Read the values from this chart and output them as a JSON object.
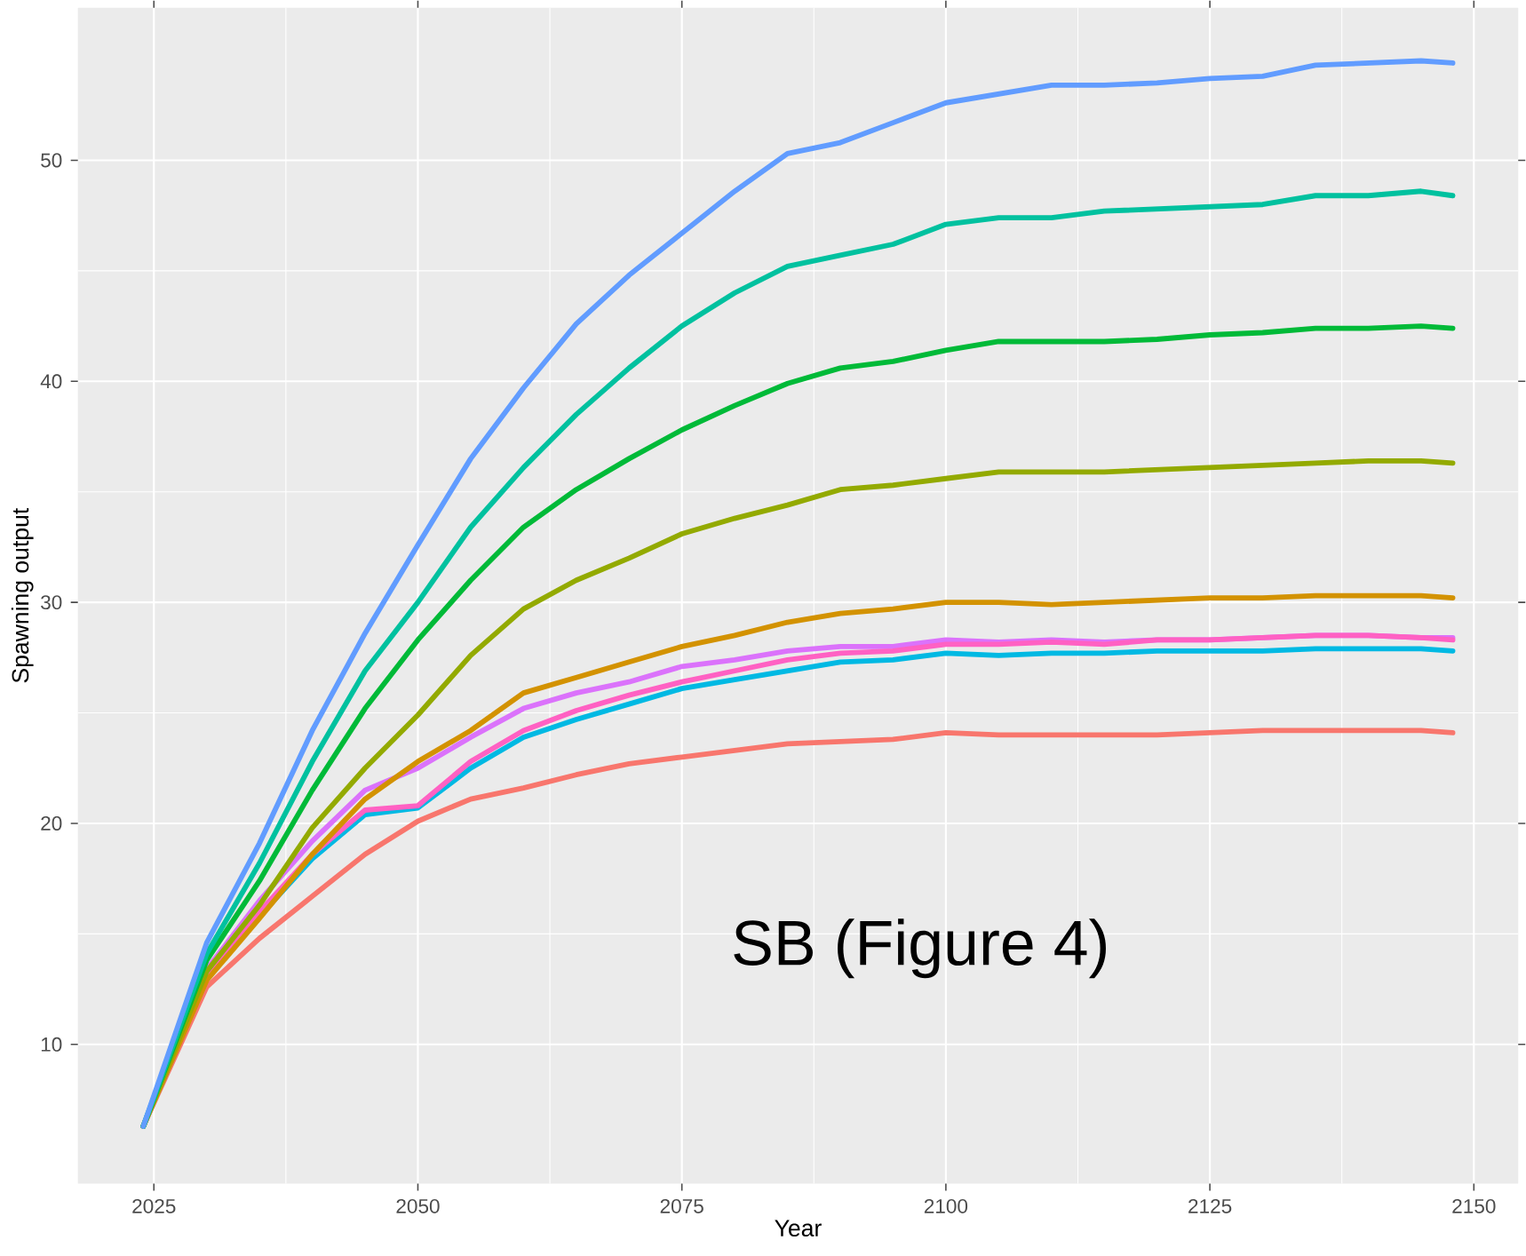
{
  "chart_data": {
    "type": "line",
    "xlabel": "Year",
    "ylabel": "Spawning output",
    "annotations": [
      "SB (Figure 4)"
    ],
    "x": [
      2024,
      2030,
      2035,
      2040,
      2045,
      2050,
      2055,
      2060,
      2065,
      2070,
      2075,
      2080,
      2085,
      2090,
      2095,
      2100,
      2105,
      2110,
      2115,
      2120,
      2125,
      2130,
      2135,
      2140,
      2145,
      2148
    ],
    "xlim": [
      2017.8,
      2154.2
    ],
    "xticks": [
      2025,
      2050,
      2075,
      2100,
      2125,
      2150
    ],
    "ylim": [
      3.7,
      56.9
    ],
    "yticks": [
      10,
      20,
      30,
      40,
      50
    ],
    "grid": true,
    "series": [
      {
        "color": "#F8766D",
        "values": [
          6.3,
          12.6,
          14.8,
          16.7,
          18.6,
          20.1,
          21.1,
          21.6,
          22.2,
          22.7,
          23.0,
          23.3,
          23.6,
          23.7,
          23.8,
          24.1,
          24.0,
          24.0,
          24.0,
          24.0,
          24.1,
          24.2,
          24.2,
          24.2,
          24.2,
          24.1
        ]
      },
      {
        "color": "#00B9E3",
        "values": [
          6.3,
          13.0,
          15.8,
          18.4,
          20.4,
          20.7,
          22.5,
          23.9,
          24.7,
          25.4,
          26.1,
          26.5,
          26.9,
          27.3,
          27.4,
          27.7,
          27.6,
          27.7,
          27.7,
          27.8,
          27.8,
          27.8,
          27.9,
          27.9,
          27.9,
          27.8
        ]
      },
      {
        "color": "#DB72FB",
        "values": [
          6.3,
          13.4,
          16.5,
          19.2,
          21.5,
          22.5,
          23.9,
          25.2,
          25.9,
          26.4,
          27.1,
          27.4,
          27.8,
          28.0,
          28.0,
          28.3,
          28.2,
          28.3,
          28.2,
          28.3,
          28.3,
          28.4,
          28.5,
          28.5,
          28.4,
          28.4
        ]
      },
      {
        "color": "#FF61C3",
        "values": [
          6.3,
          13.1,
          16.0,
          18.6,
          20.6,
          20.8,
          22.8,
          24.2,
          25.1,
          25.8,
          26.4,
          26.9,
          27.4,
          27.7,
          27.8,
          28.1,
          28.1,
          28.2,
          28.1,
          28.3,
          28.3,
          28.4,
          28.5,
          28.5,
          28.4,
          28.3
        ]
      },
      {
        "color": "#D39200",
        "values": [
          6.3,
          12.9,
          15.7,
          18.6,
          21.1,
          22.8,
          24.2,
          25.9,
          26.6,
          27.3,
          28.0,
          28.5,
          29.1,
          29.5,
          29.7,
          30.0,
          30.0,
          29.9,
          30.0,
          30.1,
          30.2,
          30.2,
          30.3,
          30.3,
          30.3,
          30.2
        ]
      },
      {
        "color": "#93AA00",
        "values": [
          6.3,
          13.3,
          16.3,
          19.8,
          22.5,
          24.9,
          27.6,
          29.7,
          31.0,
          32.0,
          33.1,
          33.8,
          34.4,
          35.1,
          35.3,
          35.6,
          35.9,
          35.9,
          35.9,
          36.0,
          36.1,
          36.2,
          36.3,
          36.4,
          36.4,
          36.3
        ]
      },
      {
        "color": "#00BA38",
        "values": [
          6.3,
          13.8,
          17.4,
          21.5,
          25.2,
          28.3,
          31.0,
          33.4,
          35.1,
          36.5,
          37.8,
          38.9,
          39.9,
          40.6,
          40.9,
          41.4,
          41.8,
          41.8,
          41.8,
          41.9,
          42.1,
          42.2,
          42.4,
          42.4,
          42.5,
          42.4
        ]
      },
      {
        "color": "#00C19F",
        "values": [
          6.3,
          14.1,
          18.2,
          22.8,
          26.9,
          30.0,
          33.4,
          36.1,
          38.5,
          40.6,
          42.5,
          44.0,
          45.2,
          45.7,
          46.2,
          47.1,
          47.4,
          47.4,
          47.7,
          47.8,
          47.9,
          48.0,
          48.4,
          48.4,
          48.6,
          48.4
        ]
      },
      {
        "color": "#619CFF",
        "values": [
          6.3,
          14.6,
          19.1,
          24.2,
          28.6,
          32.6,
          36.5,
          39.7,
          42.6,
          44.8,
          46.7,
          48.6,
          50.3,
          50.8,
          51.7,
          52.6,
          53.0,
          53.4,
          53.4,
          53.5,
          53.7,
          53.8,
          54.3,
          54.4,
          54.5,
          54.4
        ]
      }
    ]
  }
}
